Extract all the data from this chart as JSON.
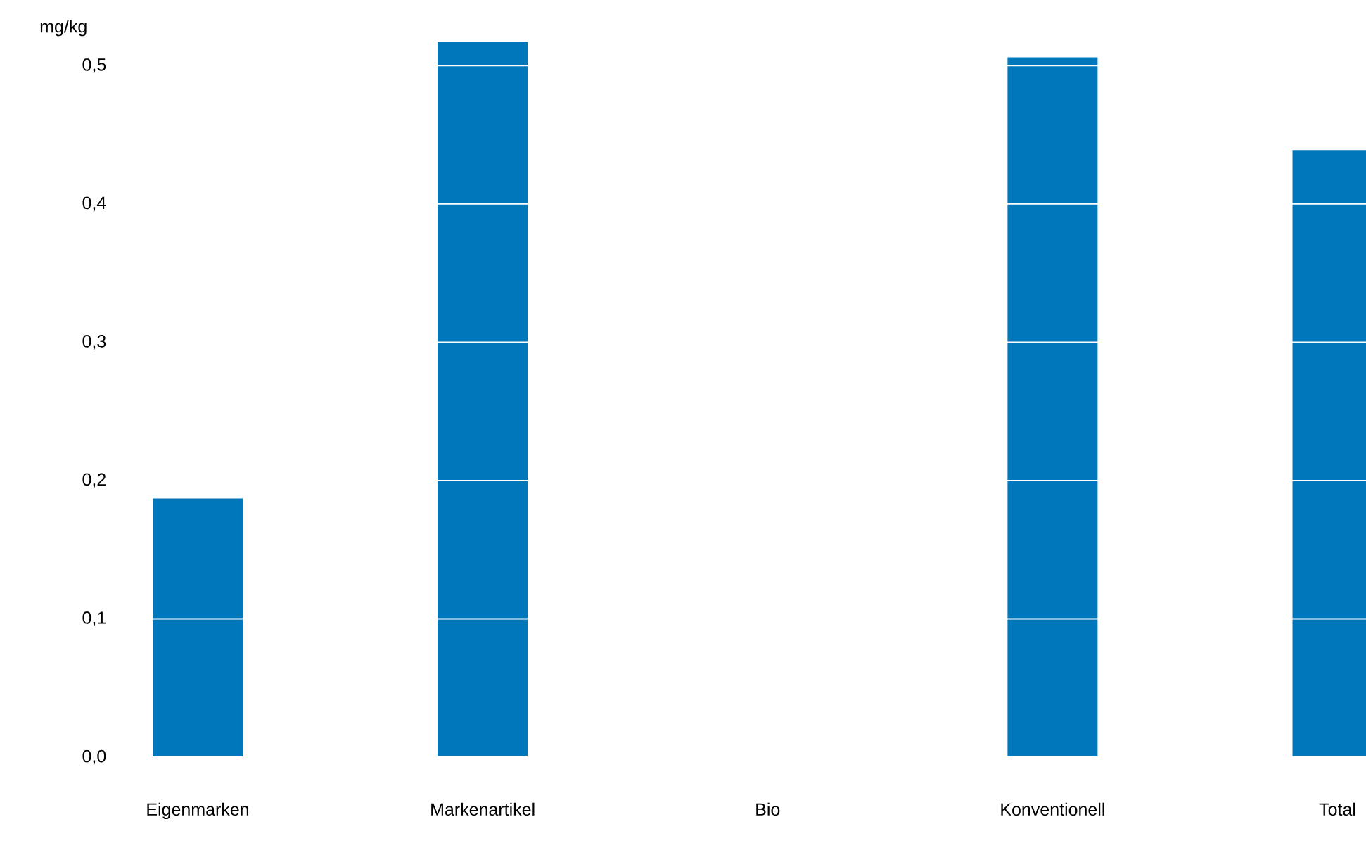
{
  "chart_data": {
    "type": "bar",
    "ylabel": "mg/kg",
    "categories": [
      "Eigenmarken",
      "Markenartikel",
      "Bio",
      "Konventionell",
      "Total"
    ],
    "values": [
      0.187,
      0.517,
      null,
      0.506,
      0.439
    ],
    "color": "#0077bb",
    "ylim": [
      0,
      0.52
    ],
    "yticks": [
      {
        "value": 0,
        "label": "0,0"
      },
      {
        "value": 0.1,
        "label": "0,1"
      },
      {
        "value": 0.2,
        "label": "0,2"
      },
      {
        "value": 0.3,
        "label": "0,3"
      },
      {
        "value": 0.4,
        "label": "0,4"
      },
      {
        "value": 0.5,
        "label": "0,5"
      }
    ],
    "grid": "y"
  }
}
